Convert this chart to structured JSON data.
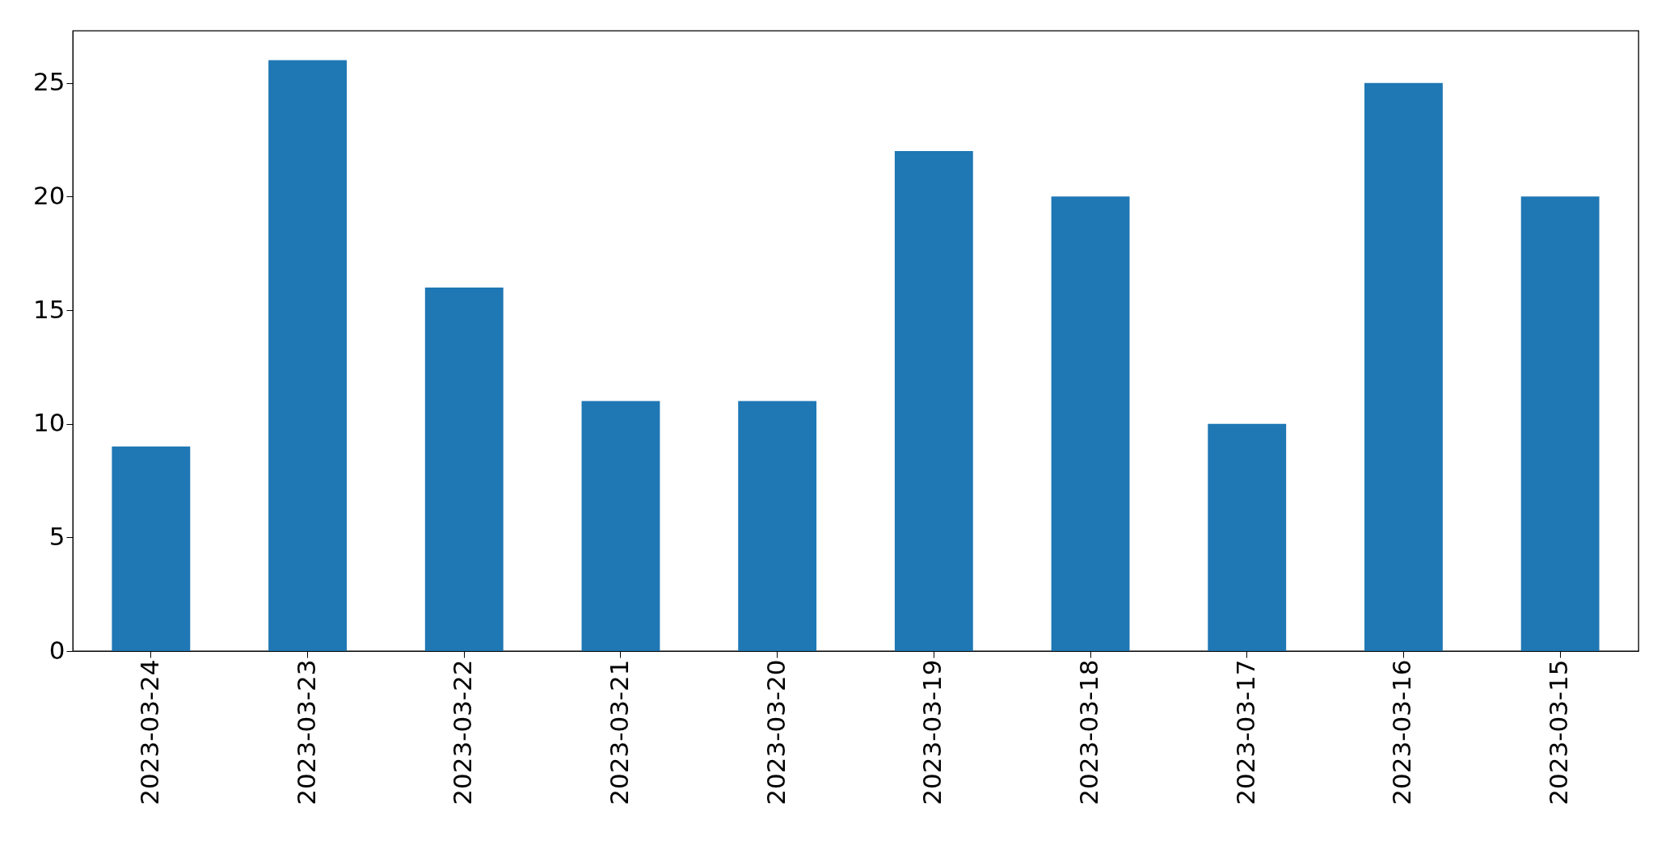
{
  "chart_data": {
    "type": "bar",
    "categories": [
      "2023-03-24",
      "2023-03-23",
      "2023-03-22",
      "2023-03-21",
      "2023-03-20",
      "2023-03-19",
      "2023-03-18",
      "2023-03-17",
      "2023-03-16",
      "2023-03-15"
    ],
    "values": [
      9,
      26,
      16,
      11,
      11,
      22,
      20,
      10,
      25,
      20
    ],
    "color": "#1f77b4",
    "ylim": [
      0,
      27.3
    ],
    "yticks": [
      0,
      5,
      10,
      15,
      20,
      25
    ],
    "grid": false
  }
}
